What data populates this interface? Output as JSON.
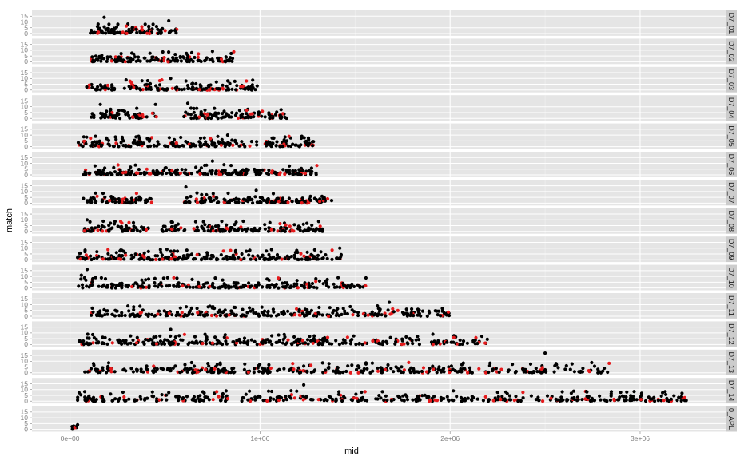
{
  "chart_data": {
    "type": "scatter",
    "faceted": true,
    "facet_direction": "rows",
    "xlabel": "mid",
    "ylabel": "match",
    "xlim": [
      -200000,
      3450000
    ],
    "ylim": [
      -2,
      20
    ],
    "x_ticks": [
      0,
      1000000,
      2000000,
      3000000
    ],
    "x_tick_labels": [
      "0e+00",
      "1e+06",
      "2e+06",
      "3e+06"
    ],
    "y_ticks": [
      0,
      5,
      10,
      15
    ],
    "y_tick_labels": [
      "0",
      "5",
      "10",
      "15"
    ],
    "grid": true,
    "point_colors": {
      "primary": "#000000",
      "secondary": "#e41a1c"
    },
    "panel_background": "#e5e5e5",
    "strip_background": "#cccccc",
    "gridline_color": "#ffffff",
    "facets": [
      {
        "label": "D7_01",
        "x_range": [
          100000,
          570000
        ],
        "max_match": 14,
        "n_points": 110,
        "segments": [
          [
            100000,
            300000
          ],
          [
            300000,
            570000
          ]
        ],
        "spikes": [
          [
            180000,
            14
          ],
          [
            520000,
            11
          ]
        ]
      },
      {
        "label": "D7_02",
        "x_range": [
          110000,
          870000
        ],
        "max_match": 9,
        "n_points": 150,
        "segments": [
          [
            110000,
            380000
          ],
          [
            380000,
            870000
          ]
        ],
        "spikes": [
          [
            750000,
            9
          ]
        ]
      },
      {
        "label": "D7_03",
        "x_range": [
          60000,
          990000
        ],
        "max_match": 10,
        "n_points": 170,
        "segments": [
          [
            60000,
            930000
          ],
          [
            930000,
            990000
          ]
        ],
        "spikes": [
          [
            530000,
            10
          ]
        ]
      },
      {
        "label": "D7_04",
        "x_range": [
          110000,
          1150000
        ],
        "max_match": 13,
        "n_points": 170,
        "segments": [
          [
            110000,
            460000
          ],
          [
            600000,
            1150000
          ]
        ],
        "spikes": [
          [
            160000,
            12
          ],
          [
            450000,
            12
          ],
          [
            620000,
            13
          ]
        ]
      },
      {
        "label": "D7_05",
        "x_range": [
          40000,
          1310000
        ],
        "max_match": 10,
        "n_points": 230,
        "segments": [
          [
            40000,
            1310000
          ]
        ],
        "spikes": [
          [
            830000,
            10
          ],
          [
            1220000,
            9
          ]
        ]
      },
      {
        "label": "D7_06",
        "x_range": [
          70000,
          1300000
        ],
        "max_match": 12,
        "n_points": 230,
        "segments": [
          [
            70000,
            1300000
          ]
        ],
        "spikes": [
          [
            750000,
            12
          ]
        ]
      },
      {
        "label": "D7_07",
        "x_range": [
          70000,
          1380000
        ],
        "max_match": 14,
        "n_points": 220,
        "segments": [
          [
            70000,
            430000
          ],
          [
            600000,
            1380000
          ]
        ],
        "spikes": [
          [
            610000,
            14
          ],
          [
            980000,
            11
          ]
        ]
      },
      {
        "label": "D7_08",
        "x_range": [
          70000,
          1340000
        ],
        "max_match": 10,
        "n_points": 220,
        "segments": [
          [
            70000,
            430000
          ],
          [
            480000,
            1340000
          ]
        ],
        "spikes": [
          [
            90000,
            10
          ]
        ]
      },
      {
        "label": "D7_09",
        "x_range": [
          40000,
          1440000
        ],
        "max_match": 10,
        "n_points": 240,
        "segments": [
          [
            40000,
            1440000
          ]
        ],
        "spikes": [
          [
            1420000,
            10
          ]
        ]
      },
      {
        "label": "D7_10",
        "x_range": [
          40000,
          1560000
        ],
        "max_match": 16,
        "n_points": 250,
        "segments": [
          [
            40000,
            1560000
          ]
        ],
        "spikes": [
          [
            90000,
            16
          ],
          [
            60000,
            11
          ]
        ]
      },
      {
        "label": "D7_11",
        "x_range": [
          110000,
          2000000
        ],
        "max_match": 12,
        "n_points": 300,
        "segments": [
          [
            110000,
            2000000
          ]
        ],
        "spikes": [
          [
            1680000,
            12
          ]
        ]
      },
      {
        "label": "D7_12",
        "x_range": [
          50000,
          2200000
        ],
        "max_match": 13,
        "n_points": 320,
        "segments": [
          [
            50000,
            1850000
          ],
          [
            1900000,
            2200000
          ]
        ],
        "spikes": [
          [
            530000,
            13
          ]
        ]
      },
      {
        "label": "D7_13",
        "x_range": [
          70000,
          2840000
        ],
        "max_match": 17,
        "n_points": 380,
        "segments": [
          [
            70000,
            2840000
          ]
        ],
        "spikes": [
          [
            2500000,
            17
          ]
        ]
      },
      {
        "label": "D7_14",
        "x_range": [
          40000,
          3260000
        ],
        "max_match": 14,
        "n_points": 430,
        "segments": [
          [
            40000,
            3260000
          ]
        ],
        "spikes": [
          [
            1230000,
            14
          ]
        ]
      },
      {
        "label": "0_APL",
        "x_range": [
          -10000,
          40000
        ],
        "max_match": 4,
        "n_points": 6,
        "segments": [
          [
            -10000,
            40000
          ]
        ],
        "spikes": [
          [
            40000,
            4
          ]
        ]
      }
    ]
  }
}
